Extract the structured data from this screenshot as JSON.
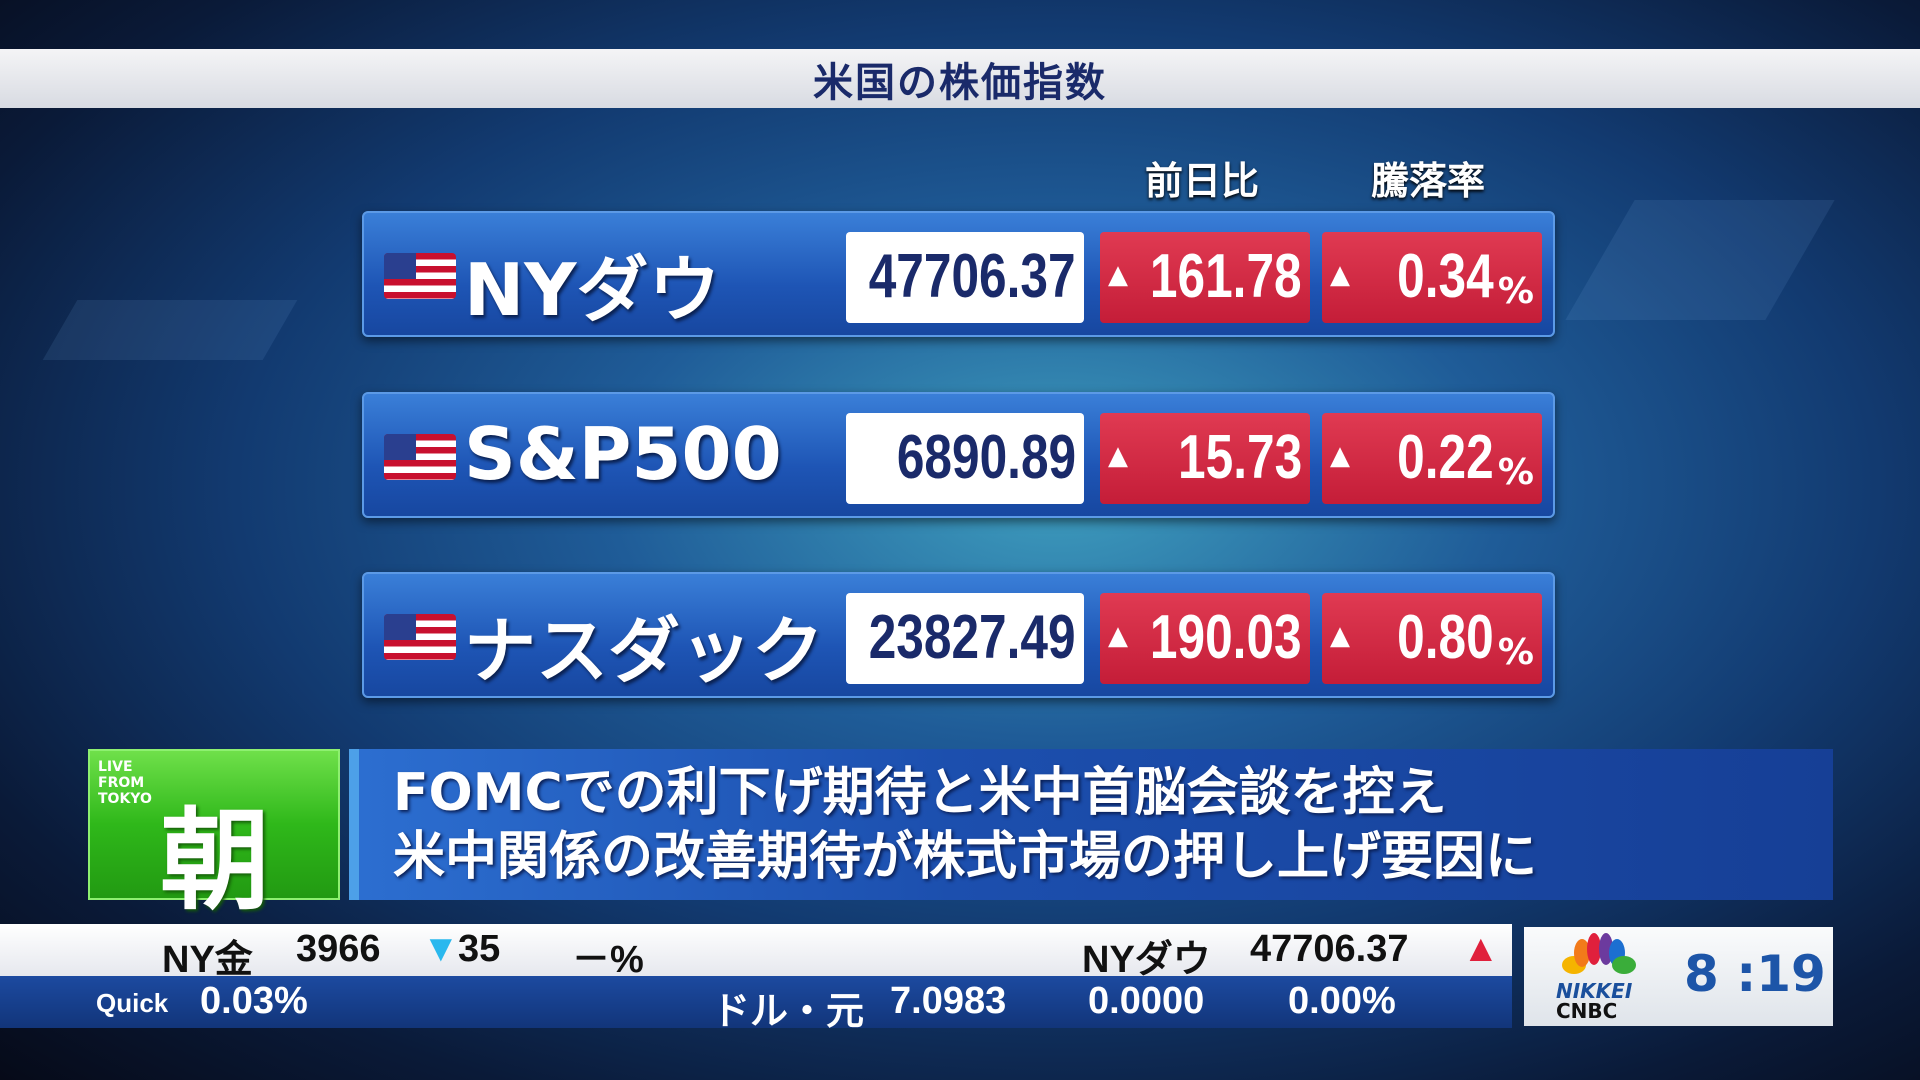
{
  "title": "米国の株価指数",
  "columns": {
    "change": "前日比",
    "rate": "騰落率"
  },
  "rows": [
    {
      "name": "NYダウ",
      "value": "47706.37",
      "change": "161.78",
      "rate": "0.34",
      "direction": "up"
    },
    {
      "name": "S&P500",
      "value": "6890.89",
      "change": "15.73",
      "rate": "0.22",
      "direction": "up"
    },
    {
      "name": "ナスダック",
      "value": "23827.49",
      "change": "190.03",
      "rate": "0.80",
      "direction": "up"
    }
  ],
  "up_symbol": "▲",
  "pct_symbol": "%",
  "program": {
    "live": "LIVE",
    "from": "FROM",
    "tokyo": "TOKYO",
    "name": "朝"
  },
  "headline": {
    "line1": "FOMCでの利下げ期待と米中首脳会談を控え",
    "line2": "米中関係の改善期待が株式市場の押し上げ要因に"
  },
  "ticker": {
    "top": {
      "gold_label": "NY金",
      "gold_value": "3966",
      "gold_arrow": "▼",
      "gold_change": "35",
      "gold_pct": "－%",
      "dow_label": "NYダウ",
      "dow_value": "47706.37",
      "dow_arrow": "▲"
    },
    "bottom": {
      "source": "Quick",
      "pct1": "0.03%",
      "fx_label": "ドル・元",
      "fx_value": "7.0983",
      "fx_change": "0.0000",
      "fx_pct": "0.00%"
    }
  },
  "logo": {
    "nikkei": "NIKKEI",
    "cnbc": "CNBC"
  },
  "clock": "8 :19",
  "colors": {
    "up": "#c41d38",
    "down": "#2ab8ee",
    "panel": "#1e55b5",
    "green": "#2fb81a"
  }
}
